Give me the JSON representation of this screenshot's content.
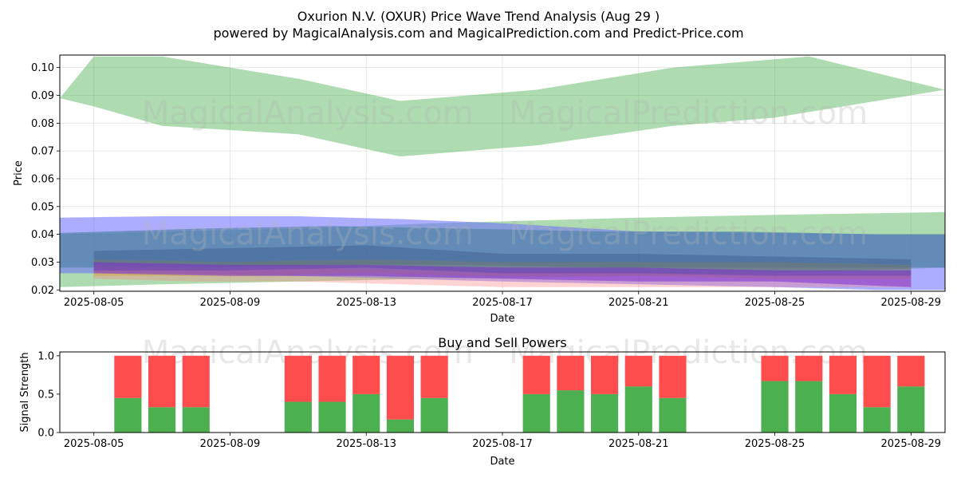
{
  "title_line1": "Oxurion N.V. (OXUR) Price Wave Trend Analysis (Aug 29 )",
  "title_line2": "powered by MagicalAnalysis.com and MagicalPrediction.com and Predict-Price.com",
  "watermarks": [
    "MagicalAnalysis.com",
    "MagicalPrediction.com"
  ],
  "chart_data": [
    {
      "type": "area",
      "xlabel": "Date",
      "ylabel": "Price",
      "ylim": [
        0.0195,
        0.1045
      ],
      "xlim": [
        "2025-08-04",
        "2025-08-30"
      ],
      "x_ticks": [
        "2025-08-05",
        "2025-08-09",
        "2025-08-13",
        "2025-08-17",
        "2025-08-21",
        "2025-08-25",
        "2025-08-29"
      ],
      "y_ticks": [
        "0.02",
        "0.03",
        "0.04",
        "0.05",
        "0.06",
        "0.07",
        "0.08",
        "0.09",
        "0.10"
      ],
      "grid": true,
      "bands": [
        {
          "color": "#4caf50",
          "opacity": 0.45,
          "x": [
            "2025-08-04",
            "2025-08-05",
            "2025-08-07",
            "2025-08-11",
            "2025-08-14",
            "2025-08-15",
            "2025-08-18",
            "2025-08-22",
            "2025-08-25",
            "2025-08-26",
            "2025-08-30"
          ],
          "upper": [
            0.089,
            0.104,
            0.104,
            0.096,
            0.088,
            0.089,
            0.092,
            0.1,
            0.103,
            0.104,
            0.092
          ],
          "lower": [
            0.089,
            0.086,
            0.079,
            0.076,
            0.068,
            0.069,
            0.072,
            0.079,
            0.082,
            0.084,
            0.092
          ]
        },
        {
          "color": "#4caf50",
          "opacity": 0.45,
          "x": [
            "2025-08-04",
            "2025-08-07",
            "2025-08-11",
            "2025-08-15",
            "2025-08-21",
            "2025-08-25",
            "2025-08-30"
          ],
          "upper": [
            0.04,
            0.041,
            0.042,
            0.044,
            0.046,
            0.047,
            0.048
          ],
          "lower": [
            0.021,
            0.022,
            0.023,
            0.024,
            0.025,
            0.026,
            0.028
          ]
        },
        {
          "color": "#6a6aff",
          "opacity": 0.55,
          "x": [
            "2025-08-04",
            "2025-08-07",
            "2025-08-11",
            "2025-08-14",
            "2025-08-17",
            "2025-08-21",
            "2025-08-25",
            "2025-08-28",
            "2025-08-30"
          ],
          "upper": [
            0.046,
            0.0465,
            0.0465,
            0.0455,
            0.044,
            0.041,
            0.0405,
            0.04,
            0.04
          ],
          "lower": [
            0.026,
            0.026,
            0.025,
            0.024,
            0.023,
            0.022,
            0.021,
            0.02,
            0.02
          ]
        },
        {
          "color": "#4a7fa0",
          "opacity": 0.6,
          "x": [
            "2025-08-04",
            "2025-08-08",
            "2025-08-12",
            "2025-08-16",
            "2025-08-20",
            "2025-08-24",
            "2025-08-28",
            "2025-08-30"
          ],
          "upper": [
            0.0405,
            0.042,
            0.043,
            0.042,
            0.041,
            0.041,
            0.04,
            0.04
          ],
          "lower": [
            0.028,
            0.028,
            0.029,
            0.029,
            0.028,
            0.028,
            0.028,
            0.028
          ]
        },
        {
          "color": "#ff8080",
          "opacity": 0.35,
          "x": [
            "2025-08-05",
            "2025-08-08",
            "2025-08-11",
            "2025-08-14",
            "2025-08-17",
            "2025-08-21",
            "2025-08-25",
            "2025-08-29"
          ],
          "upper": [
            0.029,
            0.028,
            0.028,
            0.027,
            0.026,
            0.026,
            0.026,
            0.026
          ],
          "lower": [
            0.024,
            0.023,
            0.023,
            0.022,
            0.021,
            0.021,
            0.021,
            0.021
          ]
        },
        {
          "color": "#d4a017",
          "opacity": 0.35,
          "x": [
            "2025-08-05",
            "2025-08-09",
            "2025-08-13",
            "2025-08-17",
            "2025-08-21",
            "2025-08-25",
            "2025-08-29"
          ],
          "upper": [
            0.031,
            0.03,
            0.031,
            0.03,
            0.03,
            0.03,
            0.029
          ],
          "lower": [
            0.025,
            0.025,
            0.026,
            0.025,
            0.025,
            0.024,
            0.024
          ]
        },
        {
          "color": "#3f5f8f",
          "opacity": 0.5,
          "x": [
            "2025-08-05",
            "2025-08-09",
            "2025-08-13",
            "2025-08-17",
            "2025-08-21",
            "2025-08-25",
            "2025-08-29"
          ],
          "upper": [
            0.034,
            0.035,
            0.036,
            0.033,
            0.033,
            0.032,
            0.031
          ],
          "lower": [
            0.027,
            0.027,
            0.028,
            0.026,
            0.026,
            0.025,
            0.025
          ]
        },
        {
          "color": "#7b2fd0",
          "opacity": 0.55,
          "x": [
            "2025-08-05",
            "2025-08-09",
            "2025-08-13",
            "2025-08-17",
            "2025-08-21",
            "2025-08-25",
            "2025-08-29"
          ],
          "upper": [
            0.03,
            0.029,
            0.029,
            0.028,
            0.028,
            0.027,
            0.027
          ],
          "lower": [
            0.026,
            0.025,
            0.025,
            0.024,
            0.023,
            0.023,
            0.021
          ]
        }
      ]
    },
    {
      "type": "bar",
      "title": "Buy and Sell Powers",
      "xlabel": "Date",
      "ylabel": "Signal Strength",
      "ylim": [
        0,
        1.05
      ],
      "xlim": [
        "2025-08-04",
        "2025-08-30"
      ],
      "x_ticks": [
        "2025-08-05",
        "2025-08-09",
        "2025-08-13",
        "2025-08-17",
        "2025-08-21",
        "2025-08-25",
        "2025-08-29"
      ],
      "y_ticks": [
        "0.0",
        "0.5",
        "1.0"
      ],
      "buy_color": "#4caf50",
      "sell_color": "#ff4d4d",
      "dates": [
        "2025-08-06",
        "2025-08-07",
        "2025-08-08",
        "2025-08-11",
        "2025-08-12",
        "2025-08-13",
        "2025-08-14",
        "2025-08-15",
        "2025-08-18",
        "2025-08-19",
        "2025-08-20",
        "2025-08-21",
        "2025-08-22",
        "2025-08-25",
        "2025-08-26",
        "2025-08-27",
        "2025-08-28",
        "2025-08-29"
      ],
      "buy": [
        0.45,
        0.33,
        0.33,
        0.4,
        0.4,
        0.5,
        0.17,
        0.45,
        0.5,
        0.55,
        0.5,
        0.6,
        0.45,
        0.67,
        0.67,
        0.5,
        0.33,
        0.6
      ],
      "sell": [
        0.55,
        0.67,
        0.67,
        0.6,
        0.6,
        0.5,
        0.83,
        0.55,
        0.5,
        0.45,
        0.5,
        0.4,
        0.55,
        0.33,
        0.33,
        0.5,
        0.67,
        0.4
      ]
    }
  ]
}
